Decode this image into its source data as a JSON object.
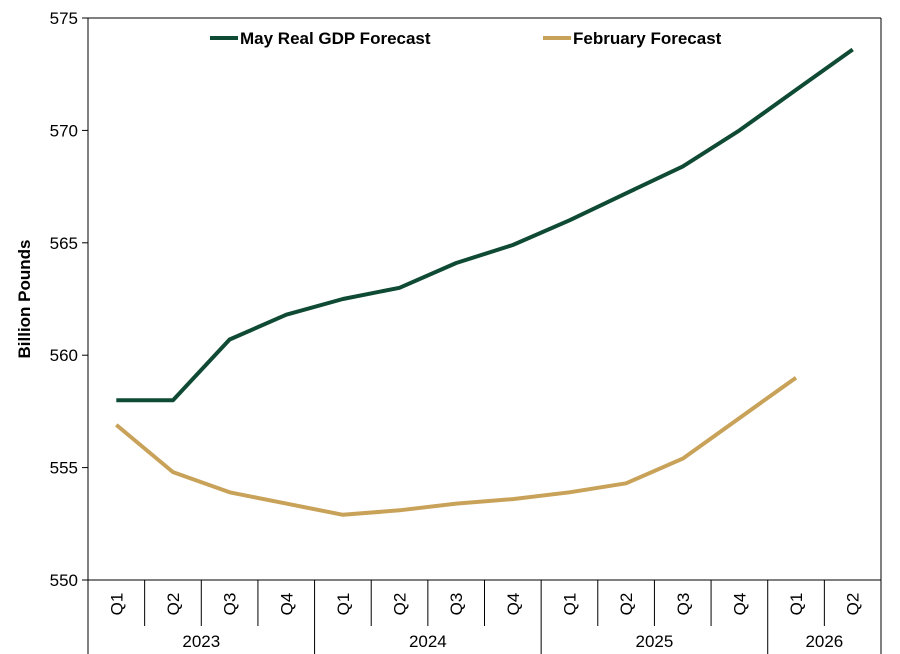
{
  "chart_data": {
    "type": "line",
    "categories": [
      "Q1",
      "Q2",
      "Q3",
      "Q4",
      "Q1",
      "Q2",
      "Q3",
      "Q4",
      "Q1",
      "Q2",
      "Q3",
      "Q4",
      "Q1",
      "Q2"
    ],
    "years": [
      {
        "label": "2023",
        "start": 0,
        "count": 4
      },
      {
        "label": "2024",
        "start": 4,
        "count": 4
      },
      {
        "label": "2025",
        "start": 8,
        "count": 4
      },
      {
        "label": "2026",
        "start": 12,
        "count": 2
      }
    ],
    "ylabel": "Billion Pounds",
    "xlabel": "",
    "ylim": [
      550,
      575
    ],
    "yticks": [
      550,
      555,
      560,
      565,
      570,
      575
    ],
    "grid": false,
    "legend_position": "top",
    "series": [
      {
        "name": "May Real GDP Forecast",
        "color": "#0f4a34",
        "values": [
          558.0,
          558.0,
          560.7,
          561.8,
          562.5,
          563.0,
          564.1,
          564.9,
          566.0,
          567.2,
          568.4,
          570.0,
          571.8,
          573.6
        ]
      },
      {
        "name": "February Forecast",
        "color": "#c9a25a",
        "values": [
          556.9,
          554.8,
          553.9,
          553.4,
          552.9,
          553.1,
          553.4,
          553.6,
          553.9,
          554.3,
          555.4,
          557.2,
          559.0,
          null
        ]
      }
    ]
  }
}
